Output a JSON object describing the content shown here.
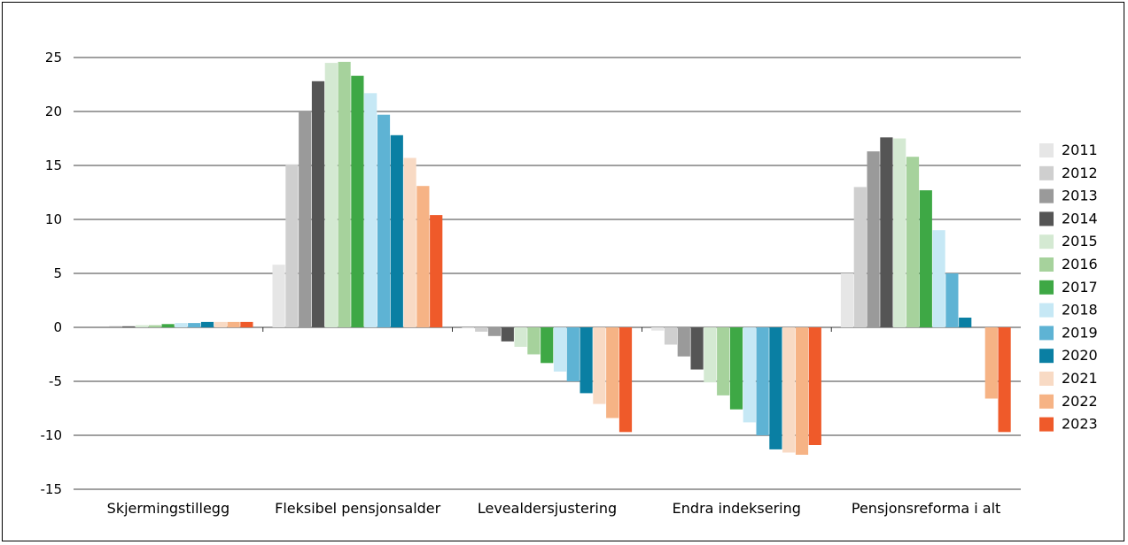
{
  "chart_data": {
    "type": "bar",
    "categories": [
      "Skjermingstillegg",
      "Fleksibel pensjonsalder",
      "Levealdersjustering",
      "Endra indeksering",
      "Pensjonsreforma i alt"
    ],
    "series": [
      {
        "name": "2011",
        "color": "#e6e6e6",
        "values": [
          0.0,
          5.8,
          -0.1,
          -0.3,
          5.0
        ]
      },
      {
        "name": "2012",
        "color": "#cfcfcf",
        "values": [
          0.0,
          15.1,
          -0.4,
          -1.6,
          13.0
        ]
      },
      {
        "name": "2013",
        "color": "#9a9a9a",
        "values": [
          0.1,
          20.0,
          -0.8,
          -2.7,
          16.3
        ]
      },
      {
        "name": "2014",
        "color": "#555555",
        "values": [
          0.1,
          22.8,
          -1.3,
          -3.9,
          17.6
        ]
      },
      {
        "name": "2015",
        "color": "#d4e9d2",
        "values": [
          0.2,
          24.5,
          -1.8,
          -5.1,
          17.5
        ]
      },
      {
        "name": "2016",
        "color": "#a6d29c",
        "values": [
          0.2,
          24.6,
          -2.5,
          -6.3,
          15.8
        ]
      },
      {
        "name": "2017",
        "color": "#3ea845",
        "values": [
          0.3,
          23.3,
          -3.3,
          -7.6,
          12.7
        ]
      },
      {
        "name": "2018",
        "color": "#c6e8f5",
        "values": [
          0.4,
          21.7,
          -4.1,
          -8.8,
          9.0
        ]
      },
      {
        "name": "2019",
        "color": "#5eb3d4",
        "values": [
          0.4,
          19.7,
          -5.0,
          -10.0,
          5.0
        ]
      },
      {
        "name": "2020",
        "color": "#0a7fa3",
        "values": [
          0.5,
          17.8,
          -6.1,
          -11.3,
          0.9
        ]
      },
      {
        "name": "2021",
        "color": "#f8dac4",
        "values": [
          0.5,
          15.7,
          -7.1,
          -11.6,
          0.0
        ]
      },
      {
        "name": "2022",
        "color": "#f6b385",
        "values": [
          0.5,
          13.1,
          -8.4,
          -11.8,
          -6.6
        ]
      },
      {
        "name": "2023",
        "color": "#ef5a2a",
        "values": [
          0.5,
          10.4,
          -9.7,
          -10.9,
          -9.7
        ]
      }
    ],
    "yticks": [
      "25",
      "20",
      "15",
      "10",
      "5",
      "0",
      "-5",
      "-10",
      "-15"
    ],
    "ylim": [
      -15,
      25
    ],
    "grid": true,
    "legend": "right"
  }
}
